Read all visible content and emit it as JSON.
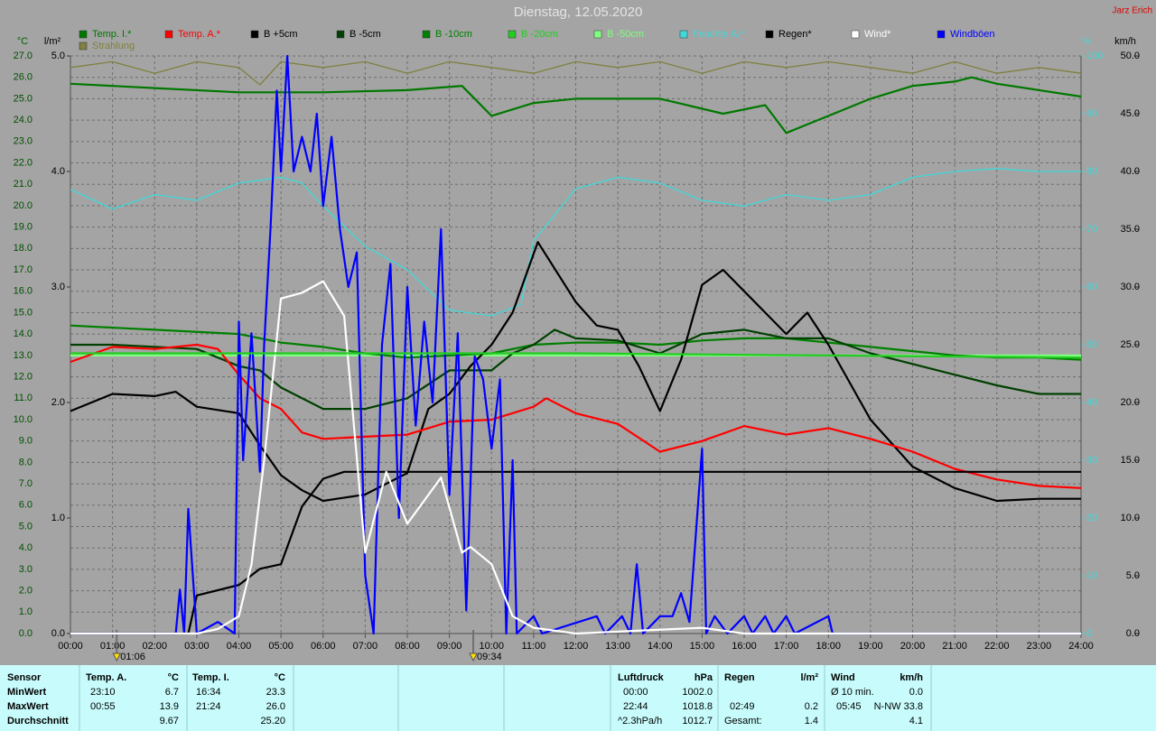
{
  "chart_data": {
    "type": "line",
    "title": "Dienstag, 12.05.2020",
    "author": "Jarz Erich",
    "y_unit": "°C",
    "y2_unit": "l/m²",
    "y3_unit": "%",
    "y4_unit": "km/h",
    "xlim": [
      0,
      24
    ],
    "xticks": [
      {
        "value": 0,
        "label": "00:00"
      },
      {
        "value": 1,
        "label": "01:00"
      },
      {
        "value": 2,
        "label": "02:00"
      },
      {
        "value": 3,
        "label": "03:00"
      },
      {
        "value": 4,
        "label": "04:00"
      },
      {
        "value": 5,
        "label": "05:00"
      },
      {
        "value": 6,
        "label": "06:00"
      },
      {
        "value": 7,
        "label": "07:00"
      },
      {
        "value": 8,
        "label": "08:00"
      },
      {
        "value": 9,
        "label": "09:00"
      },
      {
        "value": 10,
        "label": "10:00"
      },
      {
        "value": 11,
        "label": "11:00"
      },
      {
        "value": 12,
        "label": "12:00"
      },
      {
        "value": 13,
        "label": "13:00"
      },
      {
        "value": 14,
        "label": "14:00"
      },
      {
        "value": 15,
        "label": "15:00"
      },
      {
        "value": 16,
        "label": "16:00"
      },
      {
        "value": 17,
        "label": "17:00"
      },
      {
        "value": 18,
        "label": "18:00"
      },
      {
        "value": 19,
        "label": "19:00"
      },
      {
        "value": 20,
        "label": "20:00"
      },
      {
        "value": 21,
        "label": "21:00"
      },
      {
        "value": 22,
        "label": "22:00"
      },
      {
        "value": 23,
        "label": "23:00"
      },
      {
        "value": 24,
        "label": "24:00"
      }
    ],
    "ylim": [
      0,
      27
    ],
    "yticks": [
      {
        "value": 0,
        "label": "0.0"
      },
      {
        "value": 1,
        "label": "1.0"
      },
      {
        "value": 2,
        "label": "2.0"
      },
      {
        "value": 3,
        "label": "3.0"
      },
      {
        "value": 4,
        "label": "4.0"
      },
      {
        "value": 5,
        "label": "5.0"
      },
      {
        "value": 6,
        "label": "6.0"
      },
      {
        "value": 7,
        "label": "7.0"
      },
      {
        "value": 8,
        "label": "8.0"
      },
      {
        "value": 9,
        "label": "9.0"
      },
      {
        "value": 10,
        "label": "10.0"
      },
      {
        "value": 11,
        "label": "11.0"
      },
      {
        "value": 12,
        "label": "12.0"
      },
      {
        "value": 13,
        "label": "13.0"
      },
      {
        "value": 14,
        "label": "14.0"
      },
      {
        "value": 15,
        "label": "15.0"
      },
      {
        "value": 16,
        "label": "16.0"
      },
      {
        "value": 17,
        "label": "17.0"
      },
      {
        "value": 18,
        "label": "18.0"
      },
      {
        "value": 19,
        "label": "19.0"
      },
      {
        "value": 20,
        "label": "20.0"
      },
      {
        "value": 21,
        "label": "21.0"
      },
      {
        "value": 22,
        "label": "22.0"
      },
      {
        "value": 23,
        "label": "23.0"
      },
      {
        "value": 24,
        "label": "24.0"
      },
      {
        "value": 25,
        "label": "25.0"
      },
      {
        "value": 26,
        "label": "26.0"
      },
      {
        "value": 27,
        "label": "27.0"
      }
    ],
    "y2lim": [
      0,
      5
    ],
    "y2ticks": [
      {
        "value": 0,
        "label": "0.0"
      },
      {
        "value": 1,
        "label": "1.0"
      },
      {
        "value": 2,
        "label": "2.0"
      },
      {
        "value": 3,
        "label": "3.0"
      },
      {
        "value": 4,
        "label": "4.0"
      },
      {
        "value": 5,
        "label": "5.0"
      }
    ],
    "y3lim": [
      0,
      100
    ],
    "y3ticks": [
      0,
      10,
      20,
      30,
      40,
      50,
      60,
      70,
      80,
      90,
      100
    ],
    "y4lim": [
      0,
      50
    ],
    "y4ticks": [
      {
        "value": 0,
        "label": "0.0"
      },
      {
        "value": 5,
        "label": "5.0"
      },
      {
        "value": 10,
        "label": "10.0"
      },
      {
        "value": 15,
        "label": "15.0"
      },
      {
        "value": 20,
        "label": "20.0"
      },
      {
        "value": 25,
        "label": "25.0"
      },
      {
        "value": 30,
        "label": "30.0"
      },
      {
        "value": 35,
        "label": "35.0"
      },
      {
        "value": 40,
        "label": "40.0"
      },
      {
        "value": 45,
        "label": "45.0"
      },
      {
        "value": 50,
        "label": "50.0"
      }
    ],
    "grid": true,
    "series": [
      {
        "name": "Temp. I.*",
        "color": "#007800",
        "axis": "y",
        "x": [
          0,
          2,
          4,
          6,
          8,
          9.3,
          10,
          11,
          12,
          14,
          15.5,
          16.5,
          17,
          18,
          19,
          20,
          21,
          21.4,
          22,
          23,
          24
        ],
        "values": [
          25.7,
          25.5,
          25.3,
          25.3,
          25.4,
          25.6,
          24.2,
          24.8,
          25.0,
          25.0,
          24.3,
          24.7,
          23.4,
          24.2,
          25.0,
          25.6,
          25.8,
          26.0,
          25.7,
          25.4,
          25.1
        ]
      },
      {
        "name": "Temp. A.*",
        "color": "#ff0000",
        "axis": "y",
        "x": [
          0,
          1,
          2,
          3,
          3.5,
          4,
          4.5,
          5,
          5.5,
          6,
          7,
          8,
          9,
          10,
          11,
          11.3,
          12,
          13,
          14,
          15,
          16,
          17,
          18,
          19,
          20,
          21,
          22,
          23,
          24
        ],
        "values": [
          12.7,
          13.4,
          13.3,
          13.5,
          13.3,
          12.1,
          11.0,
          10.5,
          9.4,
          9.1,
          9.2,
          9.3,
          9.9,
          10.0,
          10.6,
          11.0,
          10.3,
          9.8,
          8.5,
          9.0,
          9.7,
          9.3,
          9.6,
          9.1,
          8.5,
          7.7,
          7.2,
          6.9,
          6.8
        ]
      },
      {
        "name": "B +5cm",
        "color": "#000000",
        "axis": "y",
        "x": [
          0,
          1,
          2,
          2.5,
          3,
          4,
          4.5,
          5,
          5.5,
          6,
          7,
          8,
          8.5,
          9,
          9.5,
          10,
          10.5,
          11.1,
          12,
          12.5,
          13,
          13.5,
          14,
          14.5,
          15,
          15.5,
          16,
          16.5,
          17,
          17.5,
          18,
          19,
          20,
          21,
          22,
          23,
          24
        ],
        "values": [
          10.4,
          11.2,
          11.1,
          11.3,
          10.6,
          10.3,
          8.8,
          7.4,
          6.7,
          6.2,
          6.5,
          7.5,
          10.5,
          11.2,
          12.5,
          13.5,
          15.0,
          18.3,
          15.5,
          14.4,
          14.2,
          12.5,
          10.4,
          12.8,
          16.3,
          17.0,
          16.0,
          15.0,
          14.0,
          15.0,
          13.5,
          10.0,
          7.8,
          6.8,
          6.2,
          6.3,
          6.3
        ]
      },
      {
        "name": "B -5cm",
        "color": "#004000",
        "axis": "y",
        "x": [
          0,
          1,
          3,
          4,
          4.5,
          5,
          6,
          7,
          8,
          9,
          10,
          10.5,
          11,
          11.5,
          12,
          13,
          14,
          15,
          16,
          17,
          18,
          19,
          20,
          21,
          22,
          23,
          24
        ],
        "values": [
          13.5,
          13.5,
          13.3,
          12.5,
          12.3,
          11.5,
          10.5,
          10.5,
          11.0,
          12.3,
          12.3,
          13.1,
          13.5,
          14.2,
          13.8,
          13.7,
          13.1,
          14.0,
          14.2,
          13.8,
          13.8,
          13.1,
          12.6,
          12.1,
          11.6,
          11.2,
          11.2
        ]
      },
      {
        "name": "B -10cm",
        "color": "#008000",
        "axis": "y",
        "x": [
          0,
          2,
          4,
          5,
          6,
          7,
          8,
          9,
          10,
          11,
          12,
          13,
          14,
          15,
          16,
          17,
          18,
          19,
          20,
          21,
          22,
          23,
          24
        ],
        "values": [
          14.4,
          14.2,
          14.0,
          13.6,
          13.4,
          13.1,
          12.9,
          13.0,
          13.1,
          13.5,
          13.6,
          13.6,
          13.5,
          13.7,
          13.8,
          13.8,
          13.6,
          13.4,
          13.2,
          13.0,
          12.9,
          12.9,
          12.8
        ]
      },
      {
        "name": "B -20cm",
        "color": "#22cc22",
        "axis": "y",
        "x": [
          0,
          6,
          12,
          18,
          24
        ],
        "values": [
          13.1,
          13.1,
          13.1,
          13.0,
          12.9
        ]
      },
      {
        "name": "B -50cm",
        "color": "#80ff80",
        "axis": "y",
        "x": [
          0,
          12,
          24
        ],
        "values": [
          13.0,
          13.0,
          13.0
        ]
      },
      {
        "name": "Feuchte A.*",
        "color": "#40d8d8",
        "axis": "y3",
        "x": [
          0,
          1,
          2,
          3,
          4,
          5,
          5.5,
          6,
          7,
          8,
          9,
          10,
          10.7,
          11,
          12,
          13,
          14,
          15,
          16,
          17,
          18,
          19,
          20,
          21,
          22,
          23,
          24
        ],
        "values": [
          76.9,
          73.5,
          76,
          75,
          78,
          79,
          78,
          74,
          67,
          63,
          56,
          55,
          57,
          68,
          77,
          79,
          78,
          75,
          74,
          76,
          75,
          76,
          79,
          80,
          80.5,
          80,
          80
        ]
      },
      {
        "name": "Regen*",
        "color": "#000000",
        "axis": "y2",
        "x": [
          0,
          2.8,
          3,
          4,
          4.5,
          5,
          5.5,
          6,
          6.5,
          24
        ],
        "values": [
          0,
          0,
          0.33,
          0.42,
          0.56,
          0.6,
          1.1,
          1.34,
          1.4,
          1.4
        ]
      },
      {
        "name": "Wind*",
        "color": "#ffffff",
        "axis": "y4",
        "x": [
          0,
          3,
          3.5,
          4,
          4.3,
          4.6,
          5,
          5.5,
          6,
          6.5,
          7,
          7.5,
          8,
          8.8,
          9.3,
          9.5,
          10,
          10.5,
          11,
          12,
          15,
          16,
          24
        ],
        "values": [
          0,
          0,
          0.4,
          1.5,
          6,
          15,
          29,
          29.5,
          30.5,
          27.5,
          7,
          14,
          9.5,
          13.5,
          7,
          7.5,
          6,
          1.5,
          0.5,
          0,
          0.5,
          0,
          0
        ]
      },
      {
        "name": "Windböen",
        "color": "#0000ff",
        "axis": "y4",
        "x": [
          0,
          2.5,
          2.6,
          2.7,
          2.8,
          3.0,
          3.5,
          3.9,
          4.0,
          4.1,
          4.3,
          4.5,
          4.6,
          4.75,
          4.9,
          5.0,
          5.15,
          5.3,
          5.5,
          5.7,
          5.85,
          6.0,
          6.2,
          6.4,
          6.6,
          6.8,
          7.0,
          7.2,
          7.4,
          7.6,
          7.8,
          8.0,
          8.2,
          8.4,
          8.6,
          8.8,
          9.0,
          9.2,
          9.4,
          9.6,
          9.8,
          10.0,
          10.2,
          10.35,
          10.5,
          10.6,
          11.0,
          11.2,
          12.5,
          12.7,
          13.1,
          13.3,
          13.45,
          13.6,
          14.0,
          14.3,
          14.5,
          14.7,
          15.0,
          15.1,
          15.3,
          15.6,
          16.0,
          16.2,
          16.5,
          16.7,
          17.0,
          17.2,
          18.0,
          18.1,
          24
        ],
        "values": [
          0,
          0,
          3.8,
          0,
          10.8,
          0,
          1,
          0,
          27,
          15,
          26,
          14,
          25,
          35,
          47,
          40,
          50,
          40,
          43,
          40,
          45,
          37,
          43,
          35,
          30,
          33,
          5,
          0,
          25,
          32,
          10,
          30,
          18,
          27,
          20,
          35,
          12,
          26,
          2,
          24,
          22,
          16,
          22,
          0,
          15,
          0,
          1.5,
          0,
          1.5,
          0,
          1.5,
          0,
          6,
          0,
          1.5,
          1.5,
          3.5,
          1,
          16,
          0,
          1.5,
          0,
          1.5,
          0,
          1.5,
          0,
          1.5,
          0,
          1.5,
          0,
          0
        ]
      },
      {
        "name": "Strahlung",
        "color": "#808040",
        "axis": "y3",
        "x": [
          0,
          1,
          2,
          3,
          4,
          4.5,
          5,
          6,
          7,
          8,
          9,
          10,
          11,
          12,
          13,
          14,
          15,
          16,
          17,
          18,
          19,
          20,
          21,
          22,
          23,
          24
        ],
        "values": [
          98,
          99,
          97,
          99,
          98,
          95,
          99,
          98,
          99,
          97,
          99,
          98,
          97,
          99,
          98,
          99,
          97,
          99,
          98,
          99,
          98,
          97,
          99,
          97,
          98,
          97
        ]
      }
    ],
    "markers": [
      {
        "x": 1.1,
        "label": "01:06"
      },
      {
        "x": 9.5667,
        "label": "09:34"
      }
    ]
  },
  "stats": {
    "header": "Sensor",
    "rows": [
      "MinWert",
      "MaxWert",
      "Durchschnitt"
    ],
    "temp_a": {
      "title": "Temp. A.",
      "unit": "°C",
      "min": {
        "time": "23:10",
        "value": "6.7"
      },
      "max": {
        "time": "00:55",
        "value": "13.9"
      },
      "avg": "9.67"
    },
    "temp_i": {
      "title": "Temp. I.",
      "unit": "°C",
      "min": {
        "time": "16:34",
        "value": "23.3"
      },
      "max": {
        "time": "21:24",
        "value": "26.0"
      },
      "avg": "25.20"
    },
    "pressure": {
      "title": "Luftdruck",
      "unit": "hPa",
      "min": {
        "time": "00:00",
        "value": "1002.0"
      },
      "max": {
        "time": "22:44",
        "value": "1018.8"
      },
      "trend": {
        "label": "^2.3hPa/h",
        "value": "1012.7"
      }
    },
    "rain": {
      "title": "Regen",
      "unit": "l/m²",
      "max": {
        "time": "02:49",
        "value": "0.2"
      },
      "total": {
        "label": "Gesamt:",
        "value": "1.4"
      }
    },
    "wind": {
      "title": "Wind",
      "unit": "km/h",
      "min": {
        "label": "Ø 10 min.",
        "value": "0.0"
      },
      "max": {
        "time": "05:45",
        "value": "N-NW 33.8"
      },
      "avg": "4.1"
    }
  }
}
